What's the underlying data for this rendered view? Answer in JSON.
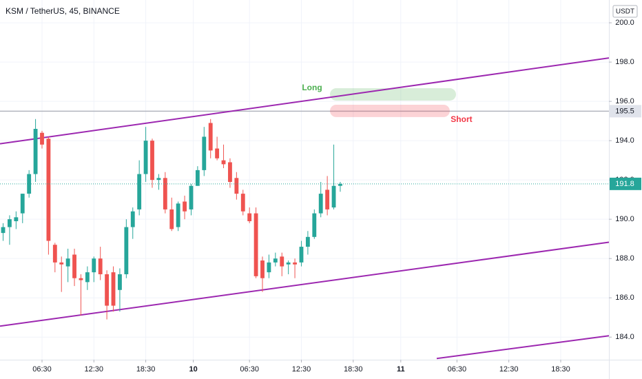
{
  "chart_data": {
    "type": "candlestick",
    "title": "KSM / TetherUS, 45, BINANCE",
    "currency": "USDT",
    "x": [
      2,
      2.75,
      3.5,
      4.25,
      5,
      5.75,
      6.5,
      7.25,
      8,
      8.75,
      9.5,
      10.25,
      11,
      11.75,
      12.5,
      13.25,
      14,
      14.75,
      15.5,
      16.25,
      17,
      17.75,
      18.5,
      19.25,
      20,
      20.75,
      21.5,
      22.25,
      23,
      23.75,
      24.5,
      25.25,
      26,
      26.75,
      27.5,
      28.25,
      29,
      29.75,
      30.5,
      31.25,
      32,
      32.75,
      33.5,
      34.25,
      35,
      35.75,
      36.5,
      37.25,
      38,
      38.75,
      39.5,
      40.25,
      41
    ],
    "open": [
      189.3,
      189.6,
      189.9,
      190.3,
      191.3,
      192.3,
      194.4,
      194.1,
      188.7,
      187.8,
      187.6,
      188.2,
      187.0,
      186.8,
      187.3,
      188.0,
      187.2,
      187.3,
      186.4,
      187.2,
      189.6,
      190.5,
      192.3,
      194.0,
      192.0,
      192.1,
      190.5,
      189.6,
      190.9,
      190.5,
      191.7,
      192.5,
      194.9,
      193.6,
      193.0,
      192.9,
      192.1,
      191.3,
      190.3,
      190.3,
      187.9,
      187.3,
      187.8,
      188.1,
      187.7,
      187.8,
      187.8,
      188.6,
      189.1,
      190.3,
      191.5,
      190.6,
      191.7
    ],
    "high": [
      189.8,
      190.2,
      190.4,
      191.3,
      192.5,
      195.1,
      194.5,
      194.2,
      188.8,
      188.1,
      188.5,
      188.5,
      187.2,
      187.6,
      188.1,
      188.6,
      187.4,
      187.6,
      187.5,
      190.0,
      190.6,
      193.0,
      194.7,
      194.1,
      192.3,
      192.4,
      191.1,
      190.9,
      191.2,
      191.8,
      192.7,
      194.7,
      195.1,
      194.2,
      193.8,
      193.1,
      192.4,
      191.5,
      190.6,
      190.6,
      188.1,
      188.2,
      188.3,
      188.3,
      187.9,
      188.0,
      188.9,
      189.4,
      190.5,
      191.9,
      192.2,
      193.8,
      191.9
    ],
    "low": [
      188.9,
      188.7,
      189.5,
      189.8,
      191.1,
      191.9,
      193.6,
      188.2,
      187.3,
      186.3,
      186.8,
      186.6,
      185.1,
      186.4,
      186.8,
      186.9,
      184.9,
      185.3,
      185.3,
      187.0,
      189.0,
      190.2,
      191.9,
      191.6,
      191.5,
      190.3,
      189.4,
      189.4,
      190.0,
      190.2,
      191.7,
      192.2,
      193.1,
      193.0,
      192.6,
      191.6,
      191.0,
      190.2,
      189.8,
      187.0,
      186.3,
      187.0,
      187.6,
      187.1,
      187.2,
      187.0,
      187.6,
      188.2,
      189.0,
      190.1,
      190.2,
      190.5,
      191.4
    ],
    "close": [
      189.6,
      190.0,
      190.1,
      191.3,
      192.3,
      194.6,
      193.8,
      188.9,
      187.8,
      187.7,
      188.0,
      187.0,
      186.9,
      187.3,
      188.0,
      187.2,
      185.6,
      185.6,
      187.2,
      189.6,
      190.4,
      192.3,
      194.0,
      192.0,
      192.1,
      190.5,
      189.5,
      190.8,
      190.4,
      191.7,
      192.5,
      194.2,
      193.5,
      193.1,
      192.8,
      191.9,
      191.3,
      190.4,
      189.9,
      187.1,
      187.0,
      187.8,
      188.0,
      187.6,
      187.8,
      187.7,
      188.6,
      189.1,
      190.3,
      191.3,
      190.5,
      191.7,
      191.8
    ],
    "up_color": "#26a69a",
    "down_color": "#ef5350",
    "xlim": [
      1.64,
      72.08
    ],
    "ylim": [
      182.85,
      201.16
    ],
    "xticks": [
      {
        "value": 6.5,
        "label": "06:30"
      },
      {
        "value": 12.5,
        "label": "12:30"
      },
      {
        "value": 18.5,
        "label": "18:30"
      },
      {
        "value": 24,
        "label": "10"
      },
      {
        "value": 30.5,
        "label": "06:30"
      },
      {
        "value": 36.5,
        "label": "12:30"
      },
      {
        "value": 42.5,
        "label": "18:30"
      },
      {
        "value": 48,
        "label": "11"
      },
      {
        "value": 54.5,
        "label": "06:30"
      },
      {
        "value": 60.5,
        "label": "12:30"
      },
      {
        "value": 66.5,
        "label": "18:30"
      }
    ],
    "yticks": [
      {
        "value": 184,
        "label": "184.0"
      },
      {
        "value": 186,
        "label": "186.0"
      },
      {
        "value": 188,
        "label": "188.0"
      },
      {
        "value": 190,
        "label": "190.0"
      },
      {
        "value": 192,
        "label": "192.0"
      },
      {
        "value": 194,
        "label": "194.0"
      },
      {
        "value": 196,
        "label": "196.0"
      },
      {
        "value": 198,
        "label": "198.0"
      },
      {
        "value": 200,
        "label": "200.0"
      }
    ],
    "grid": true,
    "trendlines": [
      {
        "color": "#9c27b0",
        "x": [
          1.64,
          72.08
        ],
        "y": [
          193.84,
          198.21
        ]
      },
      {
        "color": "#9c27b0",
        "x": [
          1.64,
          72.08
        ],
        "y": [
          184.56,
          188.83
        ]
      },
      {
        "color": "#9c27b0",
        "x": [
          52.16,
          72.08
        ],
        "y": [
          182.91,
          184.07
        ]
      }
    ],
    "hlines": [
      {
        "value": 195.5,
        "color": "#b2b5be"
      }
    ],
    "last_price": 191.8,
    "positions": [
      {
        "label": "Long",
        "color": "#4caf50",
        "x": [
          39.81,
          54.39
        ],
        "y": [
          196.04,
          196.67
        ]
      },
      {
        "label": "Short",
        "color": "#f23645",
        "x": [
          39.81,
          53.67
        ],
        "y": [
          195.2,
          195.83
        ]
      }
    ]
  }
}
